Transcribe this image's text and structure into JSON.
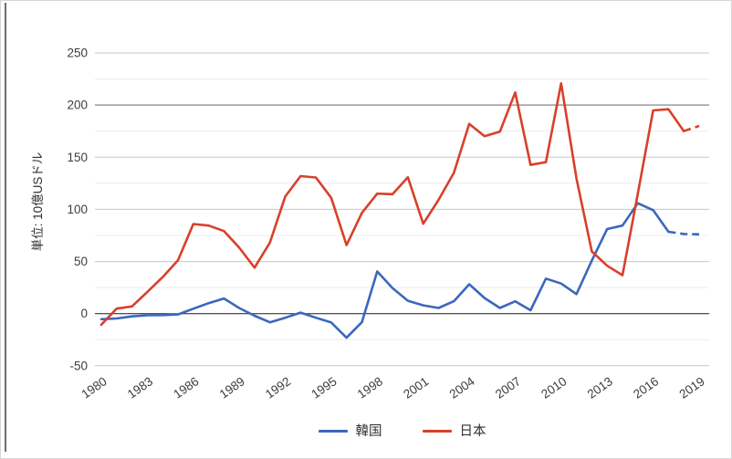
{
  "figure": {
    "background": "#ffffff",
    "border_color": "#d6d6d6",
    "left_edge_color": "#6e6e6e"
  },
  "chart_data": {
    "type": "line",
    "title": "",
    "xlabel": "",
    "ylabel": "単位: 10億USドル",
    "ylim": [
      -50,
      250
    ],
    "y_major_step": 50,
    "y_minor_step": 25,
    "grid": "horizontal only, minor every 25 (light), major every 50 (gray), zero axis black",
    "legend_position": "bottom-center",
    "x_years": [
      1980,
      1981,
      1982,
      1983,
      1984,
      1985,
      1986,
      1987,
      1988,
      1989,
      1990,
      1991,
      1992,
      1993,
      1994,
      1995,
      1996,
      1997,
      1998,
      1999,
      2000,
      2001,
      2002,
      2003,
      2004,
      2005,
      2006,
      2007,
      2008,
      2009,
      2010,
      2011,
      2012,
      2013,
      2014,
      2015,
      2016,
      2017,
      2018,
      2019
    ],
    "x_tick_labels": [
      "1980",
      "1983",
      "1986",
      "1989",
      "1992",
      "1995",
      "1998",
      "2001",
      "2004",
      "2007",
      "2010",
      "2013",
      "2016",
      "2019"
    ],
    "y_ticks": [
      250,
      200,
      150,
      100,
      50,
      0,
      -50
    ],
    "tick_label_color": "#3d3d3d",
    "series": [
      {
        "name": "韓国",
        "key": "korea",
        "color": "#3B67BD",
        "dashed_from_index": 37,
        "values": [
          -5.3,
          -4.6,
          -2.6,
          -1.6,
          -1.4,
          -0.8,
          4.7,
          10.1,
          14.5,
          5.3,
          -2.0,
          -8.3,
          -3.9,
          1.0,
          -3.9,
          -8.5,
          -23.1,
          -8.2,
          40.4,
          24.5,
          12.3,
          8.0,
          5.4,
          11.9,
          28.2,
          15.0,
          5.4,
          11.8,
          3.2,
          33.6,
          28.9,
          18.7,
          50.8,
          81.1,
          84.4,
          105.9,
          99.2,
          78.5,
          76.4,
          76.0
        ]
      },
      {
        "name": "日本",
        "key": "japan",
        "color": "#D8402A",
        "dashed_from_index": 38,
        "values": [
          -10.7,
          4.8,
          6.9,
          20.8,
          35.0,
          51.1,
          85.9,
          84.4,
          79.2,
          63.2,
          44.1,
          68.1,
          112.3,
          131.9,
          130.6,
          111.0,
          65.7,
          96.6,
          115.1,
          114.5,
          130.7,
          86.2,
          109.1,
          135.0,
          182.0,
          170.1,
          174.5,
          212.1,
          142.6,
          145.3,
          220.9,
          129.6,
          59.7,
          45.9,
          36.8,
          115.0,
          194.9,
          196.0,
          175.0,
          180.0
        ]
      }
    ]
  }
}
